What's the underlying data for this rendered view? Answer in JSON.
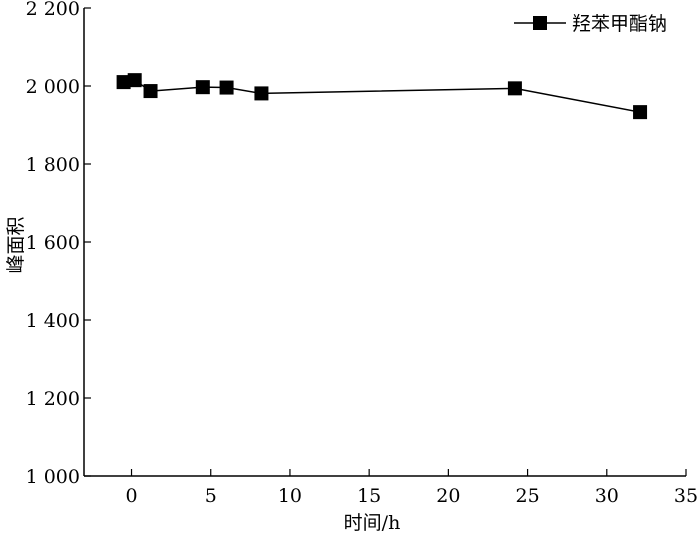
{
  "chart_data": {
    "type": "line",
    "xlabel": "时间/h",
    "ylabel": "峰面积",
    "xlim": [
      -3,
      35
    ],
    "ylim": [
      1000,
      2200
    ],
    "x_ticks": [
      0,
      5,
      10,
      15,
      20,
      25,
      30,
      35
    ],
    "x_tick_labels": [
      "0",
      "5",
      "10",
      "15",
      "20",
      "25",
      "30",
      "35"
    ],
    "y_ticks": [
      1000,
      1200,
      1400,
      1600,
      1800,
      2000,
      2200
    ],
    "y_tick_labels": [
      "1 000",
      "1 200",
      "1 400",
      "1 600",
      "1 800",
      "2 000",
      "2 200"
    ],
    "grid": false,
    "legend_position": "top-right",
    "series": [
      {
        "name": "羟苯甲酯钠",
        "marker": "square",
        "color": "#000000",
        "points": [
          {
            "x": -0.5,
            "y": 2010
          },
          {
            "x": 0.2,
            "y": 2015
          },
          {
            "x": 1.2,
            "y": 1987
          },
          {
            "x": 4.5,
            "y": 1997
          },
          {
            "x": 6.0,
            "y": 1996
          },
          {
            "x": 8.2,
            "y": 1981
          },
          {
            "x": 24.2,
            "y": 1994
          },
          {
            "x": 32.1,
            "y": 1933
          }
        ]
      }
    ]
  }
}
